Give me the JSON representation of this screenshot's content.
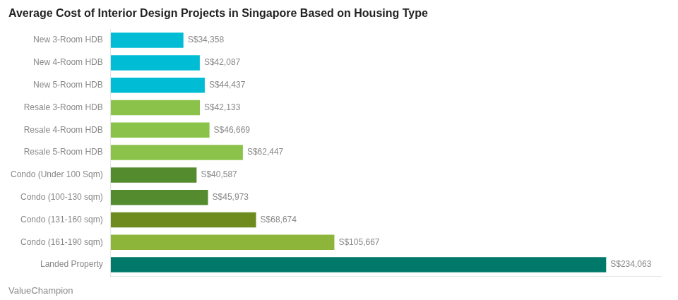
{
  "chart_data": {
    "type": "bar",
    "orientation": "horizontal",
    "title": "Average Cost of Interior Design Projects in Singapore Based on Housing Type",
    "categories": [
      "New 3-Room HDB",
      "New 4-Room HDB",
      "New 5-Room HDB",
      "Resale 3-Room HDB",
      "Resale 4-Room HDB",
      "Resale 5-Room HDB",
      "Condo (Under 100 Sqm)",
      "Condo (100-130 sqm)",
      "Condo (131-160 sqm)",
      "Condo (161-190 sqm)",
      "Landed Property"
    ],
    "values": [
      34358,
      42087,
      44437,
      42133,
      46669,
      62447,
      40587,
      45973,
      68674,
      105667,
      234063
    ],
    "value_labels": [
      "S$34,358",
      "S$42,087",
      "S$44,437",
      "S$42,133",
      "S$46,669",
      "S$62,447",
      "S$40,587",
      "S$45,973",
      "S$68,674",
      "S$105,667",
      "S$234,063"
    ],
    "colors": [
      "#00BCD4",
      "#00BCD4",
      "#00BCD4",
      "#8BC34A",
      "#8BC34A",
      "#8BC34A",
      "#558B2F",
      "#558B2F",
      "#6D8B1F",
      "#8DB53A",
      "#00796B"
    ],
    "xlim": [
      0,
      260000
    ],
    "data_labels": true,
    "tick_labels": "y",
    "grid": false,
    "annotations": [
      "ValueChampion"
    ]
  }
}
